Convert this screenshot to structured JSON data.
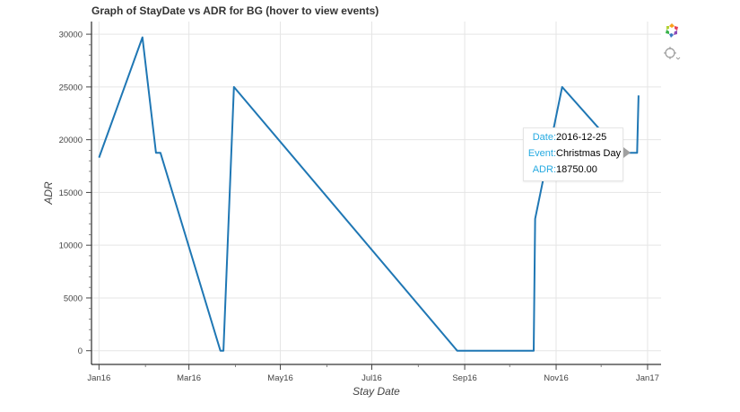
{
  "title": "Graph of StayDate vs ADR for BG (hover to view events)",
  "toolbar": {
    "icons": [
      "bokeh-logo-icon",
      "crosshair-hover-icon"
    ]
  },
  "tooltip": {
    "date_key": "Date:",
    "date_value": "2016-12-25",
    "event_key": "Event:",
    "event_value": "Christmas Day",
    "adr_key": "ADR:",
    "adr_value": "18750.00"
  },
  "chart_data": {
    "type": "line",
    "title": "Graph of StayDate vs ADR for BG (hover to view events)",
    "xlabel": "Stay Date",
    "ylabel": "ADR",
    "x_ticks": [
      "Jan16",
      "Mar16",
      "May16",
      "Jul16",
      "Sep16",
      "Nov16",
      "Jan17"
    ],
    "y_ticks": [
      "0",
      "5000",
      "10000",
      "15000",
      "20000",
      "25000",
      "30000"
    ],
    "ylim": [
      -1300,
      31200
    ],
    "grid": true,
    "line_color": "#1f77b4",
    "series": [
      {
        "x": [
          "2016-01-01",
          "2016-01-30",
          "2016-02-08",
          "2016-02-11",
          "2016-03-22",
          "2016-03-24",
          "2016-03-31",
          "2016-08-27",
          "2016-10-17",
          "2016-10-18",
          "2016-11-05",
          "2016-12-14",
          "2016-12-25",
          "2016-12-26"
        ],
        "values": [
          18300,
          29700,
          18750,
          18750,
          0,
          0,
          25000,
          0,
          0,
          12500,
          25000,
          18750,
          18750,
          24200
        ]
      }
    ]
  }
}
